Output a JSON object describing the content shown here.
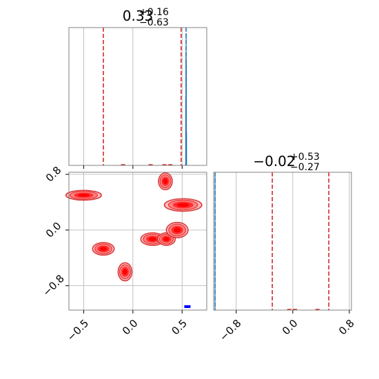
{
  "chart_data": {
    "type": "corner",
    "panels": [
      {
        "id": "top-left",
        "type": "histogram",
        "title": {
          "value": "0.33",
          "upper": "+0.16",
          "lower": "−0.63"
        },
        "x_range": [
          -0.65,
          0.75
        ],
        "x_ticks": [
          -0.5,
          0.0,
          0.5
        ],
        "grid": true,
        "red_dashed_lines_x": [
          -0.3,
          0.49
        ],
        "blue_dashed_line_x": 0.54,
        "histogram_spikes": [
          {
            "x": 0.535,
            "height": 0.01
          },
          {
            "x": 0.537,
            "height": 0.48
          },
          {
            "x": 0.539,
            "height": 0.82
          },
          {
            "x": 0.541,
            "height": 0.96
          },
          {
            "x": 0.543,
            "height": 0.76
          },
          {
            "x": 0.545,
            "height": 0.24
          }
        ],
        "red_baseline_marks": [
          -0.1,
          0.18,
          0.32,
          0.38
        ]
      },
      {
        "id": "bottom-left",
        "type": "contour",
        "x_range": [
          -0.65,
          0.75
        ],
        "y_range": [
          -1.15,
          0.83
        ],
        "x_ticks": [
          -0.5,
          0.0,
          0.5
        ],
        "y_ticks": [
          0.8,
          0.0,
          -0.8
        ],
        "x_tick_labels": [
          "−0.5",
          "0.0",
          "0.5"
        ],
        "y_tick_labels": [
          "0.8",
          "0.0",
          "−0.8"
        ],
        "grid": true,
        "blobs": [
          {
            "x": -0.5,
            "y": 0.5,
            "rx": 0.18,
            "ry": 0.07
          },
          {
            "x": 0.33,
            "y": 0.7,
            "rx": 0.07,
            "ry": 0.12
          },
          {
            "x": 0.51,
            "y": 0.36,
            "rx": 0.19,
            "ry": 0.09
          },
          {
            "x": -0.3,
            "y": -0.27,
            "rx": 0.11,
            "ry": 0.09
          },
          {
            "x": 0.2,
            "y": -0.13,
            "rx": 0.12,
            "ry": 0.09
          },
          {
            "x": 0.34,
            "y": -0.13,
            "rx": 0.09,
            "ry": 0.09
          },
          {
            "x": 0.45,
            "y": 0.0,
            "rx": 0.11,
            "ry": 0.11
          },
          {
            "x": -0.08,
            "y": -0.6,
            "rx": 0.07,
            "ry": 0.13
          }
        ],
        "blue_marker": {
          "x": 0.55,
          "y": -1.1
        }
      },
      {
        "id": "bottom-right",
        "type": "histogram",
        "title": {
          "value": "−0.02",
          "upper": "+0.53",
          "lower": "−0.27"
        },
        "x_range": [
          -1.12,
          0.83
        ],
        "x_ticks": [
          -0.8,
          0.0,
          0.8
        ],
        "x_tick_labels": [
          "−0.8",
          "0.0",
          "0.8"
        ],
        "grid": true,
        "red_dashed_lines_x": [
          -0.29,
          0.51
        ],
        "blue_dashed_line_x": -1.1,
        "histogram_spikes": [
          {
            "x": -1.1,
            "height": 0.99
          }
        ],
        "red_baseline_marks": [
          -0.05,
          0.03,
          0.35
        ]
      }
    ]
  }
}
